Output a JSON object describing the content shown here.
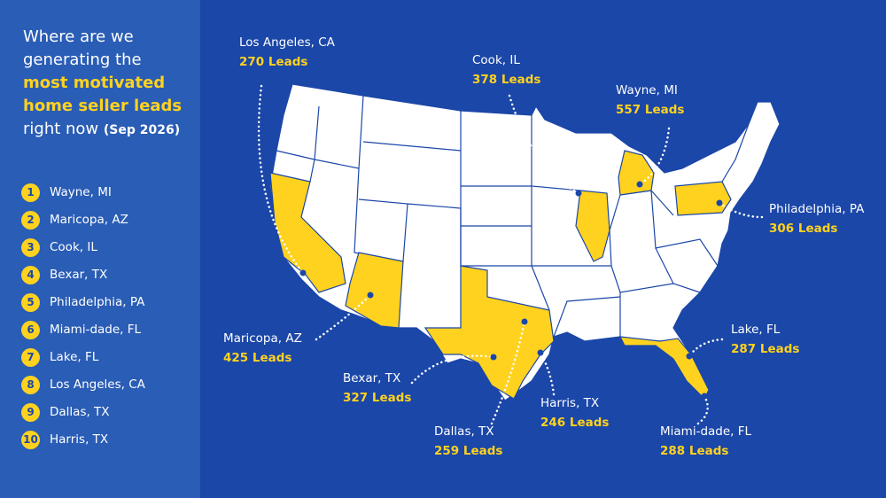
{
  "header": {
    "title_lines": [
      "Where are we",
      "generating the"
    ],
    "highlight_lines": [
      "most motivated",
      "home seller leads"
    ],
    "title_end": "right now",
    "date": "(Sep 2026)"
  },
  "ranking": [
    {
      "rank": 1,
      "name": "Wayne, MI"
    },
    {
      "rank": 2,
      "name": "Maricopa, AZ"
    },
    {
      "rank": 3,
      "name": "Cook, IL"
    },
    {
      "rank": 4,
      "name": "Bexar, TX"
    },
    {
      "rank": 5,
      "name": "Philadelphia, PA"
    },
    {
      "rank": 6,
      "name": "Miami-dade, FL"
    },
    {
      "rank": 7,
      "name": "Lake, FL"
    },
    {
      "rank": 8,
      "name": "Los Angeles, CA"
    },
    {
      "rank": 9,
      "name": "Dallas, TX"
    },
    {
      "rank": 10,
      "name": "Harris, TX"
    }
  ],
  "callouts": [
    {
      "name": "Los Angeles, CA",
      "leads": "270 Leads"
    },
    {
      "name": "Cook, IL",
      "leads": "378 Leads"
    },
    {
      "name": "Wayne, MI",
      "leads": "557 Leads"
    },
    {
      "name": "Philadelphia, PA",
      "leads": "306 Leads"
    },
    {
      "name": "Maricopa, AZ",
      "leads": "425 Leads"
    },
    {
      "name": "Bexar, TX",
      "leads": "327 Leads"
    },
    {
      "name": "Dallas, TX",
      "leads": "259 Leads"
    },
    {
      "name": "Harris, TX",
      "leads": "246 Leads"
    },
    {
      "name": "Lake, FL",
      "leads": "287 Leads"
    },
    {
      "name": "Miami-dade, FL",
      "leads": "288 Leads"
    }
  ]
}
